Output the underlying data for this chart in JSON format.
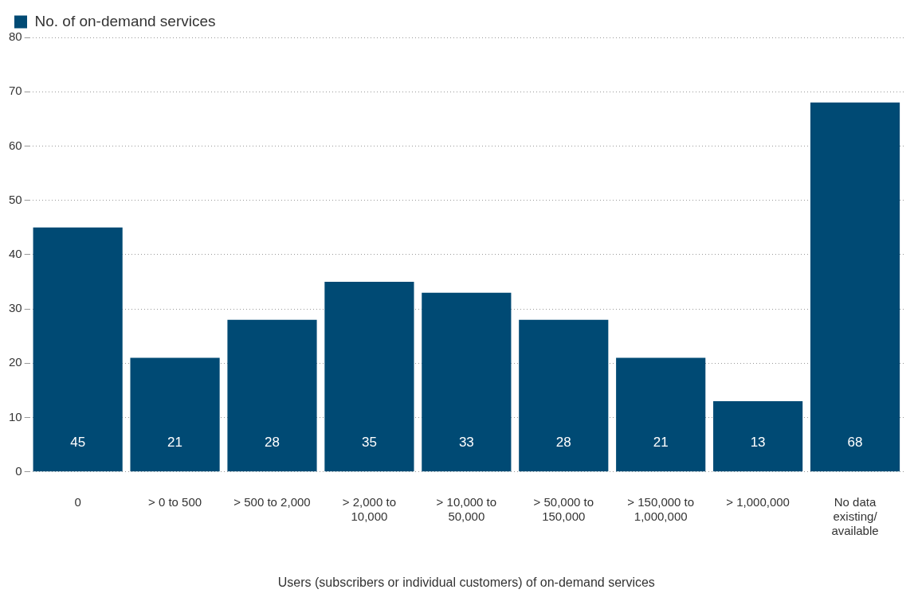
{
  "chart_data": {
    "type": "bar",
    "xlabel": "Users (subscribers or individual customers) of on-demand services",
    "categories": [
      "0",
      "> 0 to 500",
      "> 500 to 2,000",
      "> 2,000 to 10,000",
      "> 10,000 to 50,000",
      "> 50,000 to 150,000",
      "> 150,000 to 1,000,000",
      "> 1,000,000",
      "No data existing/ available"
    ],
    "series": [
      {
        "name": "No. of on-demand services",
        "color": "#004a74",
        "values": [
          45,
          21,
          28,
          35,
          33,
          28,
          21,
          13,
          68
        ]
      }
    ],
    "ylim": [
      0,
      80
    ],
    "yticks": [
      0,
      10,
      20,
      30,
      40,
      50,
      60,
      70,
      80
    ],
    "grid": "y",
    "legend": "top left",
    "data_labels": true
  }
}
